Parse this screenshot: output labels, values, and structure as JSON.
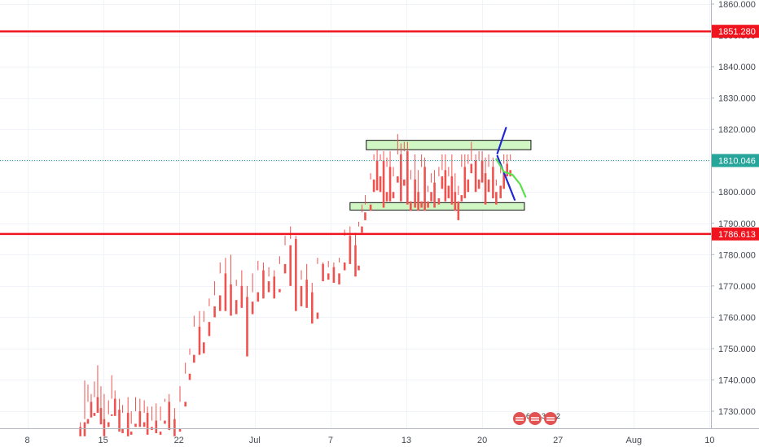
{
  "chart_data": {
    "type": "candlestick",
    "title": "",
    "xlabel": "",
    "ylabel": "",
    "ylim": [
      1722,
      1862
    ],
    "x_tick_labels": [
      "8",
      "15",
      "22",
      "Jul",
      "7",
      "13",
      "20",
      "27",
      "Aug",
      "10"
    ],
    "x_tick_slots": [
      0,
      7,
      14,
      21,
      28,
      35,
      42,
      49,
      56,
      63
    ],
    "y_ticks": [
      1730,
      1740,
      1750,
      1760,
      1770,
      1780,
      1790,
      1800,
      1810,
      1820,
      1830,
      1840,
      1850,
      1860
    ],
    "y_tick_labels": [
      "1730.000",
      "1740.000",
      "1750.000",
      "1760.000",
      "1770.000",
      "1780.000",
      "1790.000",
      "1800.000",
      "1810.000",
      "1820.000",
      "1830.000",
      "1840.000",
      "1850.000",
      "1860.000"
    ],
    "grid": true,
    "colors": {
      "up": "#26a69a",
      "down": "#ef5350",
      "level": "#f0141e",
      "zone_fill": "#c8f5b8",
      "blue_path": "#1f26d6",
      "green_path": "#5ce04c",
      "current_price": "#26a69a"
    },
    "horizontal_levels": [
      {
        "value": 1851.28,
        "label": "1851.280"
      },
      {
        "value": 1786.613,
        "label": "1786.613"
      }
    ],
    "current_price": {
      "value": 1810.046,
      "label": "1810.046"
    },
    "zones": [
      {
        "x_from": 31.3,
        "x_to": 46.5,
        "y_from": 1813.5,
        "y_to": 1816.5
      },
      {
        "x_from": 29.8,
        "x_to": 45.9,
        "y_from": 1794.2,
        "y_to": 1796.6
      }
    ],
    "projections": [
      {
        "name": "",
        "color": "#1f26d6",
        "points": [
          [
            43.4,
            1812.3
          ],
          [
            44.2,
            1820.5
          ]
        ]
      },
      {
        "name": "",
        "color": "#1f26d6",
        "points": [
          [
            43.4,
            1811.5
          ],
          [
            45.0,
            1797.5
          ]
        ]
      },
      {
        "name": "",
        "color": "#5ce04c",
        "points": [
          [
            43.3,
            1810.5
          ],
          [
            44.0,
            1806.5
          ],
          [
            44.8,
            1805.5
          ],
          [
            45.5,
            1802.5
          ],
          [
            46.0,
            1798.5
          ]
        ]
      }
    ],
    "candles": [
      [
        4.9,
        1725,
        1726.5,
        1723.5,
        1722
      ],
      [
        5.3,
        1726.5,
        1739.8,
        1727.5,
        1722
      ],
      [
        5.6,
        1727.5,
        1738.5,
        1733,
        1726
      ],
      [
        5.9,
        1733,
        1735.5,
        1729.5,
        1728
      ],
      [
        6.2,
        1729.5,
        1739.5,
        1734.5,
        1728.5
      ],
      [
        6.5,
        1734.5,
        1744.7,
        1731,
        1729.5
      ],
      [
        6.8,
        1731,
        1738,
        1727.5,
        1725.8
      ],
      [
        7.1,
        1727.5,
        1735.5,
        1726.5,
        1722
      ],
      [
        7.5,
        1726.5,
        1733.5,
        1729,
        1725
      ],
      [
        7.8,
        1729,
        1741.5,
        1734,
        1728.5
      ],
      [
        8.1,
        1734,
        1736.6,
        1730.5,
        1728.5
      ],
      [
        8.5,
        1730.5,
        1734,
        1724.5,
        1723.5
      ],
      [
        8.8,
        1724.5,
        1732,
        1729.5,
        1723
      ],
      [
        9.3,
        1729.5,
        1734.5,
        1723.5,
        1722
      ],
      [
        9.6,
        1723.5,
        1730,
        1726,
        1722.5
      ],
      [
        10.0,
        1726,
        1734.5,
        1730,
        1725
      ],
      [
        10.4,
        1730,
        1734,
        1726.5,
        1725
      ],
      [
        10.8,
        1726.5,
        1733.5,
        1729.5,
        1725
      ],
      [
        11.1,
        1729.5,
        1731.5,
        1725,
        1722.5
      ],
      [
        11.5,
        1725,
        1731.5,
        1727,
        1724
      ],
      [
        11.9,
        1727,
        1732.5,
        1723.5,
        1723
      ],
      [
        12.3,
        1723.5,
        1731.5,
        1727,
        1722.5
      ],
      [
        12.7,
        1727,
        1734,
        1733,
        1726
      ],
      [
        13.1,
        1733,
        1735.5,
        1727.5,
        1724
      ],
      [
        13.6,
        1727.5,
        1731,
        1724.5,
        1722
      ],
      [
        14.1,
        1724.5,
        1738,
        1733,
        1723.5
      ],
      [
        14.6,
        1733,
        1745.5,
        1742,
        1731.5
      ],
      [
        15.0,
        1742,
        1750,
        1748,
        1740
      ],
      [
        15.4,
        1748,
        1760.5,
        1757,
        1745.5
      ],
      [
        15.9,
        1757,
        1762,
        1752,
        1748
      ],
      [
        16.3,
        1752,
        1762,
        1758.5,
        1748.5
      ],
      [
        16.8,
        1758.5,
        1766,
        1763.5,
        1754
      ],
      [
        17.3,
        1763.5,
        1771.5,
        1767,
        1760
      ],
      [
        17.8,
        1767,
        1777.5,
        1774,
        1762
      ],
      [
        18.3,
        1774,
        1779,
        1770.5,
        1762
      ],
      [
        18.8,
        1770.5,
        1780,
        1765.5,
        1760.5
      ],
      [
        19.3,
        1765.5,
        1772,
        1770,
        1761
      ],
      [
        19.8,
        1770,
        1775,
        1766.5,
        1763
      ],
      [
        20.3,
        1766.5,
        1770,
        1765,
        1747.5
      ],
      [
        20.8,
        1765,
        1774,
        1768,
        1761
      ],
      [
        21.3,
        1768,
        1778,
        1775,
        1765
      ],
      [
        21.8,
        1775,
        1777.5,
        1771.5,
        1766
      ],
      [
        22.3,
        1771.5,
        1776,
        1773,
        1768
      ],
      [
        22.8,
        1773,
        1775,
        1769,
        1766
      ],
      [
        23.3,
        1769,
        1779.5,
        1777,
        1768
      ],
      [
        23.8,
        1777,
        1786,
        1783,
        1774
      ],
      [
        24.3,
        1783,
        1789,
        1785,
        1770
      ],
      [
        24.8,
        1785,
        1786,
        1770,
        1762
      ],
      [
        25.3,
        1770,
        1775,
        1772,
        1763.5
      ],
      [
        25.8,
        1772,
        1777,
        1768,
        1763
      ],
      [
        26.3,
        1768,
        1771,
        1761.5,
        1758
      ],
      [
        26.8,
        1761.5,
        1779,
        1777,
        1759.5
      ],
      [
        27.3,
        1777,
        1777.5,
        1774,
        1771.5
      ],
      [
        27.8,
        1774,
        1778,
        1776,
        1772
      ],
      [
        28.3,
        1776,
        1777.5,
        1774,
        1771
      ],
      [
        28.8,
        1774,
        1779,
        1777.5,
        1770.5
      ],
      [
        29.3,
        1777.5,
        1788,
        1786,
        1775
      ],
      [
        29.8,
        1786,
        1789,
        1783,
        1777
      ],
      [
        30.3,
        1783,
        1787,
        1776.5,
        1773
      ],
      [
        30.6,
        1776.5,
        1790.5,
        1789,
        1775
      ],
      [
        30.9,
        1789,
        1796,
        1793.5,
        1787
      ],
      [
        31.2,
        1793.5,
        1799,
        1796,
        1791
      ],
      [
        31.7,
        1796,
        1806,
        1804,
        1794
      ],
      [
        32.0,
        1804,
        1812,
        1810,
        1800
      ],
      [
        32.3,
        1810,
        1813.5,
        1805,
        1800.5
      ],
      [
        32.6,
        1805,
        1812,
        1810,
        1800
      ],
      [
        32.9,
        1810,
        1813,
        1800,
        1795
      ],
      [
        33.2,
        1800,
        1811,
        1808,
        1797
      ],
      [
        33.5,
        1808,
        1813,
        1800,
        1797
      ],
      [
        33.8,
        1800,
        1808,
        1805,
        1798
      ],
      [
        34.2,
        1805,
        1818.5,
        1812,
        1803
      ],
      [
        34.5,
        1812,
        1815.5,
        1804,
        1797
      ],
      [
        34.8,
        1804,
        1816,
        1813,
        1802
      ],
      [
        35.1,
        1813,
        1816,
        1797,
        1796
      ],
      [
        35.4,
        1797,
        1807,
        1804,
        1794
      ],
      [
        35.8,
        1804,
        1812,
        1800,
        1795
      ],
      [
        36.1,
        1800,
        1807,
        1797,
        1794
      ],
      [
        36.4,
        1797,
        1812,
        1808,
        1795
      ],
      [
        36.7,
        1808,
        1811,
        1797,
        1794
      ],
      [
        37.0,
        1797,
        1802,
        1800,
        1795
      ],
      [
        37.3,
        1800,
        1806,
        1803,
        1797
      ],
      [
        37.6,
        1803,
        1807,
        1798,
        1795
      ],
      [
        38.0,
        1798,
        1808,
        1805,
        1796
      ],
      [
        38.3,
        1805,
        1812,
        1807,
        1801
      ],
      [
        38.6,
        1807,
        1812,
        1802,
        1797
      ],
      [
        38.9,
        1802,
        1808,
        1805,
        1798
      ],
      [
        39.2,
        1805,
        1812,
        1800,
        1796
      ],
      [
        39.5,
        1800,
        1806,
        1797,
        1794
      ],
      [
        39.8,
        1797,
        1802,
        1799,
        1791
      ],
      [
        40.1,
        1799,
        1812,
        1808,
        1797
      ],
      [
        40.4,
        1808,
        1812,
        1804,
        1798
      ],
      [
        40.7,
        1804,
        1812,
        1809,
        1800
      ],
      [
        41.0,
        1809,
        1816,
        1810,
        1806
      ],
      [
        41.4,
        1810,
        1812,
        1804,
        1800
      ],
      [
        41.7,
        1804,
        1813,
        1810,
        1801
      ],
      [
        42.0,
        1810,
        1813,
        1806,
        1803
      ],
      [
        42.3,
        1806,
        1811,
        1804,
        1796
      ],
      [
        42.6,
        1804,
        1812,
        1808,
        1800
      ],
      [
        43.0,
        1808,
        1811,
        1800,
        1798
      ],
      [
        43.3,
        1800,
        1804,
        1802,
        1796
      ],
      [
        43.7,
        1802,
        1808,
        1806,
        1798
      ],
      [
        44.0,
        1806,
        1812,
        1809,
        1801
      ],
      [
        44.3,
        1809,
        1812,
        1807,
        1805
      ],
      [
        44.6,
        1807,
        1812,
        1810,
        1805
      ]
    ]
  },
  "badges": {
    "events": "6",
    "splits": "3",
    "dividends": "2"
  }
}
